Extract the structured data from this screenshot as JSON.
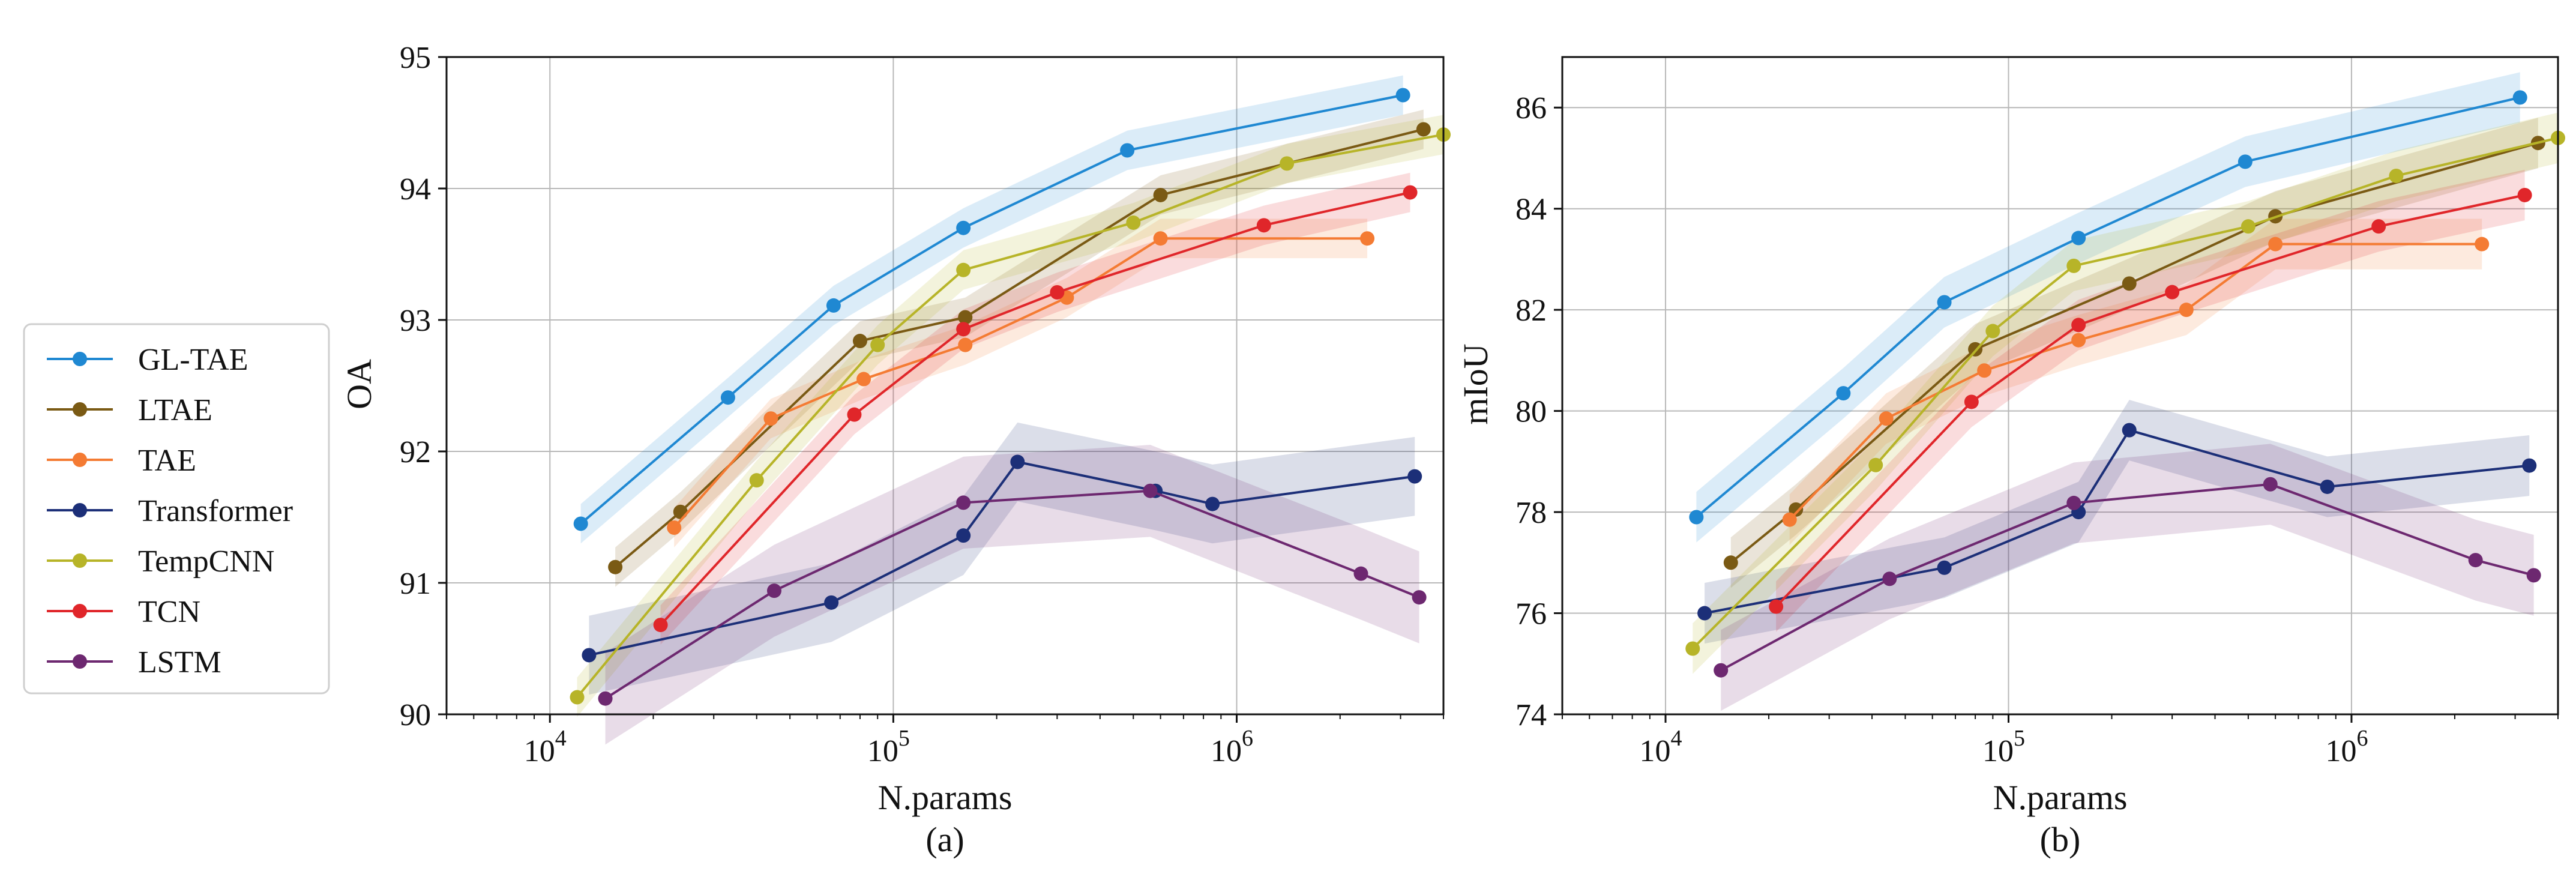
{
  "legend": [
    {
      "name": "GL-TAE",
      "color": "#1f88d2"
    },
    {
      "name": "LTAE",
      "color": "#7a5a14"
    },
    {
      "name": "TAE",
      "color": "#f47b33"
    },
    {
      "name": "Transformer",
      "color": "#1c2f78"
    },
    {
      "name": "TempCNN",
      "color": "#b7b428"
    },
    {
      "name": "TCN",
      "color": "#e0262a"
    },
    {
      "name": "LSTM",
      "color": "#6d2870"
    }
  ],
  "chart_data": [
    {
      "type": "line",
      "subtitle": "(a)",
      "xlabel": "N.params",
      "ylabel": "OA",
      "xscale": "log",
      "xlim": [
        5000,
        4000000
      ],
      "ylim": [
        90,
        95
      ],
      "x_ticks": [
        {
          "value": 10000,
          "base": "10",
          "exp": "4"
        },
        {
          "value": 100000,
          "base": "10",
          "exp": "5"
        },
        {
          "value": 1000000,
          "base": "10",
          "exp": "6"
        }
      ],
      "y_ticks": [
        "90",
        "91",
        "92",
        "93",
        "94",
        "95"
      ],
      "grid": true,
      "series": [
        {
          "name": "GL-TAE",
          "x": [
            12300,
            33000,
            67000,
            160000,
            480000,
            3050000
          ],
          "y": [
            91.45,
            92.41,
            93.11,
            93.7,
            94.29,
            94.71
          ],
          "band": 0.15
        },
        {
          "name": "LTAE",
          "x": [
            15500,
            24000,
            80000,
            162000,
            600000,
            3500000
          ],
          "y": [
            91.12,
            91.54,
            92.84,
            93.02,
            93.95,
            94.45
          ],
          "band": 0.15
        },
        {
          "name": "TAE",
          "x": [
            23000,
            44000,
            82000,
            162000,
            320000,
            600000,
            2400000
          ],
          "y": [
            91.42,
            92.25,
            92.55,
            92.81,
            93.17,
            93.62,
            93.62
          ],
          "band": 0.15
        },
        {
          "name": "Transformer",
          "x": [
            13000,
            66000,
            160000,
            230000,
            580000,
            850000,
            3300000
          ],
          "y": [
            90.45,
            90.85,
            91.36,
            91.92,
            91.7,
            91.6,
            91.81
          ],
          "band": 0.3
        },
        {
          "name": "TempCNN",
          "x": [
            12000,
            40000,
            90000,
            160000,
            500000,
            1400000,
            4000000
          ],
          "y": [
            90.13,
            91.78,
            92.81,
            93.38,
            93.74,
            94.19,
            94.41
          ],
          "band": 0.15
        },
        {
          "name": "TCN",
          "x": [
            21000,
            77000,
            160000,
            300000,
            1200000,
            3200000
          ],
          "y": [
            90.68,
            92.28,
            92.93,
            93.21,
            93.72,
            93.97
          ],
          "band": 0.15
        },
        {
          "name": "LSTM",
          "x": [
            14500,
            45000,
            160000,
            560000,
            2300000,
            3400000
          ],
          "y": [
            90.12,
            90.94,
            91.61,
            91.7,
            91.07,
            90.89
          ],
          "band": 0.35
        }
      ]
    },
    {
      "type": "line",
      "subtitle": "(b)",
      "xlabel": "N.params",
      "ylabel": "mIoU",
      "xscale": "log",
      "xlim": [
        5000,
        4000000
      ],
      "ylim": [
        74,
        87
      ],
      "x_ticks": [
        {
          "value": 10000,
          "base": "10",
          "exp": "4"
        },
        {
          "value": 100000,
          "base": "10",
          "exp": "5"
        },
        {
          "value": 1000000,
          "base": "10",
          "exp": "6"
        }
      ],
      "y_ticks": [
        "74",
        "76",
        "78",
        "80",
        "82",
        "84",
        "86"
      ],
      "grid": true,
      "series": [
        {
          "name": "GL-TAE",
          "x": [
            12300,
            33000,
            65000,
            160000,
            490000,
            3100000
          ],
          "y": [
            77.9,
            80.35,
            82.15,
            83.42,
            84.93,
            86.2
          ],
          "band": 0.5
        },
        {
          "name": "LTAE",
          "x": [
            15500,
            24000,
            80000,
            225000,
            600000,
            3500000
          ],
          "y": [
            77.0,
            78.05,
            81.22,
            82.52,
            83.85,
            85.3
          ],
          "band": 0.5
        },
        {
          "name": "TAE",
          "x": [
            23000,
            44000,
            85000,
            160000,
            330000,
            600000,
            2400000
          ],
          "y": [
            77.85,
            79.85,
            80.8,
            81.4,
            82.0,
            83.3,
            83.3
          ],
          "band": 0.5
        },
        {
          "name": "Transformer",
          "x": [
            13000,
            65000,
            160000,
            225000,
            850000,
            3300000
          ],
          "y": [
            76.0,
            76.9,
            78.0,
            79.62,
            78.5,
            78.92
          ],
          "band": 0.6
        },
        {
          "name": "TempCNN",
          "x": [
            12000,
            41000,
            90000,
            155000,
            500000,
            1350000,
            4000000
          ],
          "y": [
            75.3,
            78.93,
            81.58,
            82.87,
            83.65,
            84.65,
            85.4
          ],
          "band": 0.5
        },
        {
          "name": "TCN",
          "x": [
            21000,
            78000,
            160000,
            300000,
            1200000,
            3200000
          ],
          "y": [
            76.13,
            80.18,
            81.7,
            82.35,
            83.65,
            84.27
          ],
          "band": 0.5
        },
        {
          "name": "LSTM",
          "x": [
            14500,
            45000,
            155000,
            580000,
            2300000,
            3400000
          ],
          "y": [
            74.87,
            76.68,
            78.18,
            78.55,
            77.05,
            76.75
          ],
          "band": 0.8
        }
      ]
    }
  ]
}
